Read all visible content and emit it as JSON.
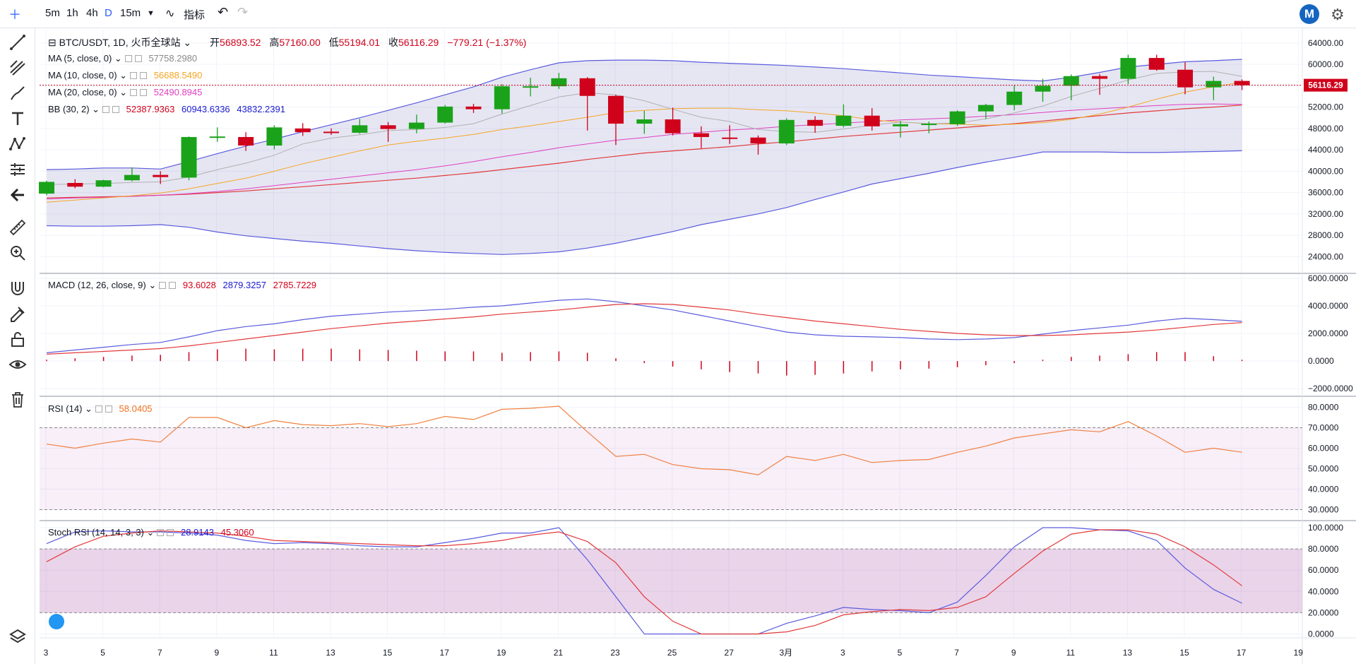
{
  "toolbar": {
    "intervals": [
      "5m",
      "1h",
      "4h",
      "D",
      "15m"
    ],
    "active_interval": "D",
    "indicators_label": "指标"
  },
  "symbol": {
    "title": "BTC/USDT, 1D, 火币全球站",
    "open_label": "开",
    "open": "56893.52",
    "high_label": "高",
    "high": "57160.00",
    "low_label": "低",
    "low": "55194.01",
    "close_label": "收",
    "close": "56116.29",
    "change": "−779.21 (−1.37%)",
    "price_tag": "56116.29"
  },
  "legends": {
    "ma5": {
      "label": "MA (5, close, 0)",
      "value": "57758.2980",
      "color": "#b0b0b0"
    },
    "ma10": {
      "label": "MA (10, close, 0)",
      "value": "56688.5490",
      "color": "#f5a623"
    },
    "ma20": {
      "label": "MA (20, close, 0)",
      "value": "52490.8945",
      "color": "#e040c0"
    },
    "bb": {
      "label": "BB (30, 2)",
      "v1": "52387.9363",
      "v2": "60943.6336",
      "v3": "43832.2391"
    },
    "macd": {
      "label": "MACD (12, 26, close, 9)",
      "v1": "93.6028",
      "v2": "2879.3257",
      "v3": "2785.7229"
    },
    "rsi": {
      "label": "RSI (14)",
      "value": "58.0405"
    },
    "stoch": {
      "label": "Stoch RSI (14, 14, 3, 3)",
      "v1": "28.9143",
      "v2": "45.3060"
    }
  },
  "colors": {
    "up": "#1aa31a",
    "down": "#d0021b",
    "bb": "#5b5bdd",
    "ma_slow": "#e23a3a",
    "rsi": "#f08040"
  },
  "chart_data": {
    "type": "candlestick",
    "x_tick_labels": [
      "3",
      "5",
      "7",
      "9",
      "11",
      "13",
      "15",
      "17",
      "19",
      "21",
      "23",
      "25",
      "27",
      "3月",
      "3",
      "5",
      "7",
      "9",
      "11",
      "13",
      "15",
      "17",
      "19"
    ],
    "price_axis_ticks": [
      64000,
      60000,
      56000,
      52000,
      48000,
      44000,
      40000,
      36000,
      32000,
      28000,
      24000
    ],
    "price_axis_labels": [
      "64000.00",
      "60000.00",
      "56000.00",
      "52000.00",
      "48000.00",
      "44000.00",
      "40000.00",
      "36000.00",
      "32000.00",
      "28000.00",
      "24000.00"
    ],
    "price_range": [
      21000,
      66500
    ],
    "ohlc": [
      {
        "o": 35800,
        "h": 38200,
        "l": 35500,
        "c": 38000
      },
      {
        "o": 37800,
        "h": 38500,
        "l": 36800,
        "c": 37100
      },
      {
        "o": 37100,
        "h": 38400,
        "l": 37000,
        "c": 38300
      },
      {
        "o": 38300,
        "h": 40700,
        "l": 38100,
        "c": 39300
      },
      {
        "o": 39300,
        "h": 40000,
        "l": 37600,
        "c": 38900
      },
      {
        "o": 38800,
        "h": 46500,
        "l": 38300,
        "c": 46400
      },
      {
        "o": 46400,
        "h": 48200,
        "l": 45500,
        "c": 46500
      },
      {
        "o": 46400,
        "h": 47300,
        "l": 43800,
        "c": 44800
      },
      {
        "o": 44800,
        "h": 48600,
        "l": 44100,
        "c": 48200
      },
      {
        "o": 48000,
        "h": 49000,
        "l": 46600,
        "c": 47300
      },
      {
        "o": 47400,
        "h": 48000,
        "l": 46800,
        "c": 47200
      },
      {
        "o": 47200,
        "h": 49800,
        "l": 47000,
        "c": 48600
      },
      {
        "o": 48600,
        "h": 49200,
        "l": 45500,
        "c": 47900
      },
      {
        "o": 47900,
        "h": 50600,
        "l": 47100,
        "c": 49100
      },
      {
        "o": 49100,
        "h": 52400,
        "l": 48900,
        "c": 52100
      },
      {
        "o": 52100,
        "h": 52600,
        "l": 50900,
        "c": 51600
      },
      {
        "o": 51600,
        "h": 56300,
        "l": 50800,
        "c": 55900
      },
      {
        "o": 55900,
        "h": 57500,
        "l": 54000,
        "c": 55900
      },
      {
        "o": 55900,
        "h": 58400,
        "l": 55400,
        "c": 57400
      },
      {
        "o": 57400,
        "h": 57600,
        "l": 47600,
        "c": 54100
      },
      {
        "o": 54100,
        "h": 54300,
        "l": 44900,
        "c": 48900
      },
      {
        "o": 48900,
        "h": 51300,
        "l": 47000,
        "c": 49700
      },
      {
        "o": 49700,
        "h": 51900,
        "l": 46700,
        "c": 47100
      },
      {
        "o": 47100,
        "h": 48400,
        "l": 44300,
        "c": 46400
      },
      {
        "o": 46300,
        "h": 48600,
        "l": 45100,
        "c": 46200
      },
      {
        "o": 46300,
        "h": 46700,
        "l": 43100,
        "c": 45200
      },
      {
        "o": 45200,
        "h": 49900,
        "l": 44900,
        "c": 49600
      },
      {
        "o": 49600,
        "h": 50300,
        "l": 47200,
        "c": 48500
      },
      {
        "o": 48500,
        "h": 52500,
        "l": 48200,
        "c": 50400
      },
      {
        "o": 50400,
        "h": 51800,
        "l": 47600,
        "c": 48400
      },
      {
        "o": 48400,
        "h": 49400,
        "l": 46300,
        "c": 48800
      },
      {
        "o": 48800,
        "h": 49300,
        "l": 47100,
        "c": 48900
      },
      {
        "o": 48800,
        "h": 51400,
        "l": 48500,
        "c": 51200
      },
      {
        "o": 51200,
        "h": 52600,
        "l": 49800,
        "c": 52400
      },
      {
        "o": 52400,
        "h": 56100,
        "l": 51400,
        "c": 54900
      },
      {
        "o": 54900,
        "h": 57300,
        "l": 53000,
        "c": 56000
      },
      {
        "o": 56000,
        "h": 58100,
        "l": 53300,
        "c": 57800
      },
      {
        "o": 57800,
        "h": 58200,
        "l": 54300,
        "c": 57300
      },
      {
        "o": 57300,
        "h": 61800,
        "l": 56300,
        "c": 61200
      },
      {
        "o": 61200,
        "h": 61800,
        "l": 58800,
        "c": 59000
      },
      {
        "o": 59000,
        "h": 60400,
        "l": 54400,
        "c": 55700
      },
      {
        "o": 55700,
        "h": 57700,
        "l": 53300,
        "c": 56900
      },
      {
        "o": 56900,
        "h": 57200,
        "l": 55200,
        "c": 56100
      }
    ],
    "ma5": [
      37500,
      37600,
      37700,
      37900,
      38000,
      38900,
      40300,
      41500,
      43000,
      45100,
      46200,
      46800,
      47600,
      47800,
      48200,
      48900,
      50700,
      52300,
      53900,
      54700,
      54300,
      53200,
      51600,
      50100,
      49300,
      47800,
      47400,
      47300,
      47900,
      48600,
      49200,
      48900,
      49000,
      49800,
      50900,
      52200,
      54000,
      55500,
      57100,
      58300,
      58600,
      58700,
      57760
    ],
    "ma10": [
      34200,
      34600,
      35000,
      35400,
      35900,
      36700,
      37700,
      38700,
      40000,
      41400,
      42600,
      43800,
      44900,
      45600,
      46200,
      46900,
      47800,
      48500,
      49300,
      50100,
      51000,
      51400,
      51700,
      51800,
      51800,
      51500,
      51300,
      50900,
      50400,
      49600,
      49200,
      48900,
      48800,
      48600,
      48800,
      49100,
      49700,
      50700,
      52000,
      53500,
      54800,
      55800,
      56690
    ],
    "ma20": [
      34800,
      35000,
      35100,
      35300,
      35500,
      35800,
      36200,
      36700,
      37300,
      37900,
      38500,
      39100,
      39700,
      40300,
      41000,
      41800,
      42700,
      43500,
      44400,
      45100,
      45800,
      46300,
      46900,
      47300,
      47700,
      48000,
      48400,
      48700,
      49000,
      49300,
      49600,
      49800,
      50000,
      50300,
      50600,
      51000,
      51400,
      51700,
      52000,
      52300,
      52500,
      52600,
      52490
    ],
    "bb_mid": [
      35000,
      35100,
      35200,
      35300,
      35500,
      35700,
      36000,
      36300,
      36700,
      37100,
      37500,
      37900,
      38300,
      38700,
      39200,
      39700,
      40300,
      40900,
      41500,
      42200,
      42800,
      43400,
      43800,
      44200,
      44600,
      45100,
      45500,
      46000,
      46500,
      46900,
      47300,
      47700,
      48100,
      48500,
      48900,
      49400,
      49900,
      50400,
      50900,
      51300,
      51700,
      52000,
      52390
    ],
    "bb_upper": [
      40300,
      40400,
      40600,
      40600,
      40400,
      41800,
      43300,
      44700,
      46000,
      47400,
      48700,
      50000,
      51400,
      52800,
      54300,
      55800,
      57600,
      59000,
      60300,
      60700,
      60800,
      60800,
      60700,
      60400,
      60200,
      60000,
      59800,
      59500,
      59200,
      58800,
      58400,
      58000,
      57700,
      57400,
      57100,
      56900,
      57600,
      58500,
      59500,
      60000,
      60500,
      60700,
      60940
    ],
    "bb_lower": [
      29800,
      29700,
      29700,
      29800,
      30000,
      29500,
      28600,
      27900,
      27400,
      26900,
      26500,
      26000,
      25500,
      25100,
      24800,
      24600,
      24400,
      24600,
      24900,
      25600,
      26500,
      27600,
      28700,
      30000,
      31000,
      32000,
      33200,
      34700,
      36100,
      37600,
      38600,
      39600,
      40700,
      41700,
      42600,
      43600,
      43600,
      43600,
      43500,
      43500,
      43600,
      43700,
      43830
    ],
    "macd_axis_ticks": [
      6000,
      4000,
      2000,
      0,
      -2000
    ],
    "macd_axis_labels": [
      "6000.0000",
      "4000.0000",
      "2000.0000",
      "0.0000",
      "−2000.0000"
    ],
    "macd_range": [
      -2500,
      6300
    ],
    "macd": [
      600,
      800,
      1000,
      1200,
      1350,
      1750,
      2200,
      2500,
      2700,
      3000,
      3250,
      3400,
      3550,
      3650,
      3750,
      3900,
      4000,
      4200,
      4400,
      4500,
      4300,
      4000,
      3700,
      3300,
      2900,
      2500,
      2100,
      1900,
      1800,
      1750,
      1700,
      1600,
      1550,
      1600,
      1700,
      1950,
      2200,
      2400,
      2600,
      2900,
      3100,
      3000,
      2879
    ],
    "macd_signal": [
      500,
      600,
      700,
      800,
      900,
      1100,
      1350,
      1600,
      1850,
      2100,
      2350,
      2550,
      2750,
      2900,
      3050,
      3200,
      3400,
      3550,
      3700,
      3900,
      4100,
      4150,
      4100,
      3900,
      3700,
      3400,
      3150,
      2900,
      2700,
      2500,
      2300,
      2150,
      2000,
      1900,
      1850,
      1850,
      1900,
      2000,
      2100,
      2250,
      2450,
      2650,
      2786
    ],
    "macd_hist": [
      100,
      200,
      300,
      400,
      450,
      650,
      850,
      900,
      850,
      900,
      900,
      850,
      800,
      750,
      700,
      700,
      600,
      650,
      700,
      600,
      200,
      -150,
      -400,
      -600,
      -800,
      -900,
      -1050,
      -1000,
      -900,
      -750,
      -600,
      -550,
      -450,
      -300,
      -150,
      100,
      300,
      400,
      500,
      650,
      650,
      350,
      94
    ],
    "rsi_axis_ticks": [
      80,
      70,
      60,
      50,
      40,
      30
    ],
    "rsi_axis_labels": [
      "80.0000",
      "70.0000",
      "60.0000",
      "50.0000",
      "40.0000",
      "30.0000"
    ],
    "rsi_range": [
      25,
      85
    ],
    "rsi_bands": [
      30,
      70
    ],
    "rsi": [
      62,
      60,
      62.5,
      64.5,
      63,
      75,
      75,
      70,
      73.5,
      71.5,
      71,
      72,
      70.5,
      72,
      75.5,
      74,
      79,
      79.5,
      80.5,
      68,
      56,
      57,
      52,
      50,
      49.5,
      47,
      56,
      54,
      57,
      53,
      54,
      54.5,
      58,
      61,
      65,
      67,
      69,
      68,
      73,
      66,
      58,
      60,
      58.04
    ],
    "stoch_axis_ticks": [
      100,
      80,
      60,
      40,
      20,
      0
    ],
    "stoch_axis_labels": [
      "100.0000",
      "80.0000",
      "60.0000",
      "40.0000",
      "20.0000",
      "0.0000"
    ],
    "stoch_range": [
      -3,
      106
    ],
    "stoch_bands": [
      20,
      80
    ],
    "stoch_k": [
      85,
      96,
      97,
      96,
      96,
      95,
      93,
      88,
      85,
      86,
      85,
      83,
      82,
      82,
      86,
      90,
      95,
      95,
      100,
      70,
      35,
      0,
      0,
      0,
      0,
      0,
      10,
      17,
      25,
      23,
      22,
      20,
      30,
      55,
      82,
      100,
      100,
      98,
      97,
      88,
      62,
      42,
      28.91
    ],
    "stoch_d": [
      68,
      82,
      92,
      95,
      97,
      96,
      95,
      92,
      88,
      87,
      86,
      85,
      84,
      83,
      83,
      85,
      88,
      93,
      96,
      87,
      67,
      35,
      12,
      0,
      0,
      0,
      2,
      8,
      18,
      21,
      23,
      22,
      25,
      35,
      57,
      78,
      94,
      98,
      98,
      94,
      82,
      65,
      45.31
    ]
  }
}
